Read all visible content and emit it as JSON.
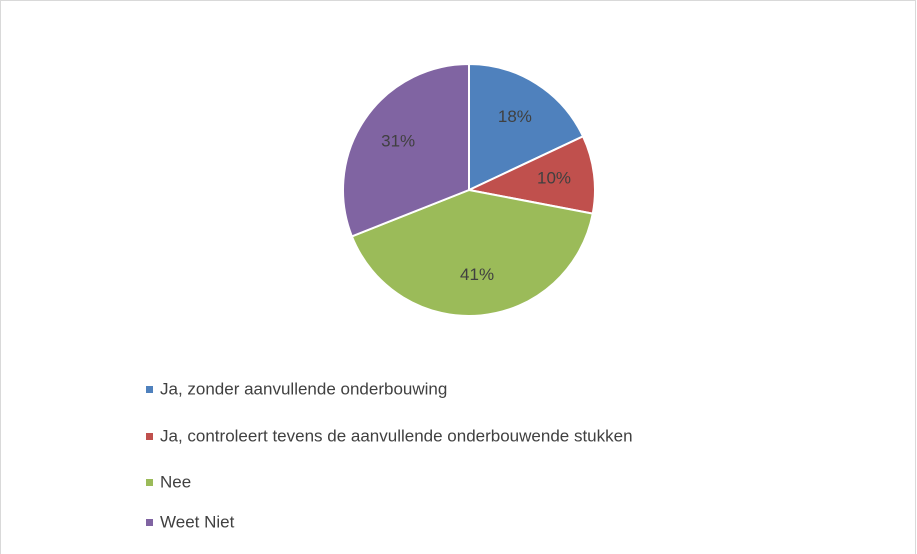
{
  "chart_data": {
    "type": "pie",
    "categories": [
      "Ja, zonder aanvullende onderbouwing",
      "Ja, controleert tevens de aanvullende onderbouwende stukken",
      "Nee",
      "Weet Niet"
    ],
    "values": [
      18,
      10,
      41,
      31
    ],
    "value_labels": [
      "18%",
      "10%",
      "41%",
      "31%"
    ],
    "colors": [
      "#4f81bd",
      "#c0504d",
      "#9bbb59",
      "#8064a2"
    ],
    "legend": "bottom"
  }
}
